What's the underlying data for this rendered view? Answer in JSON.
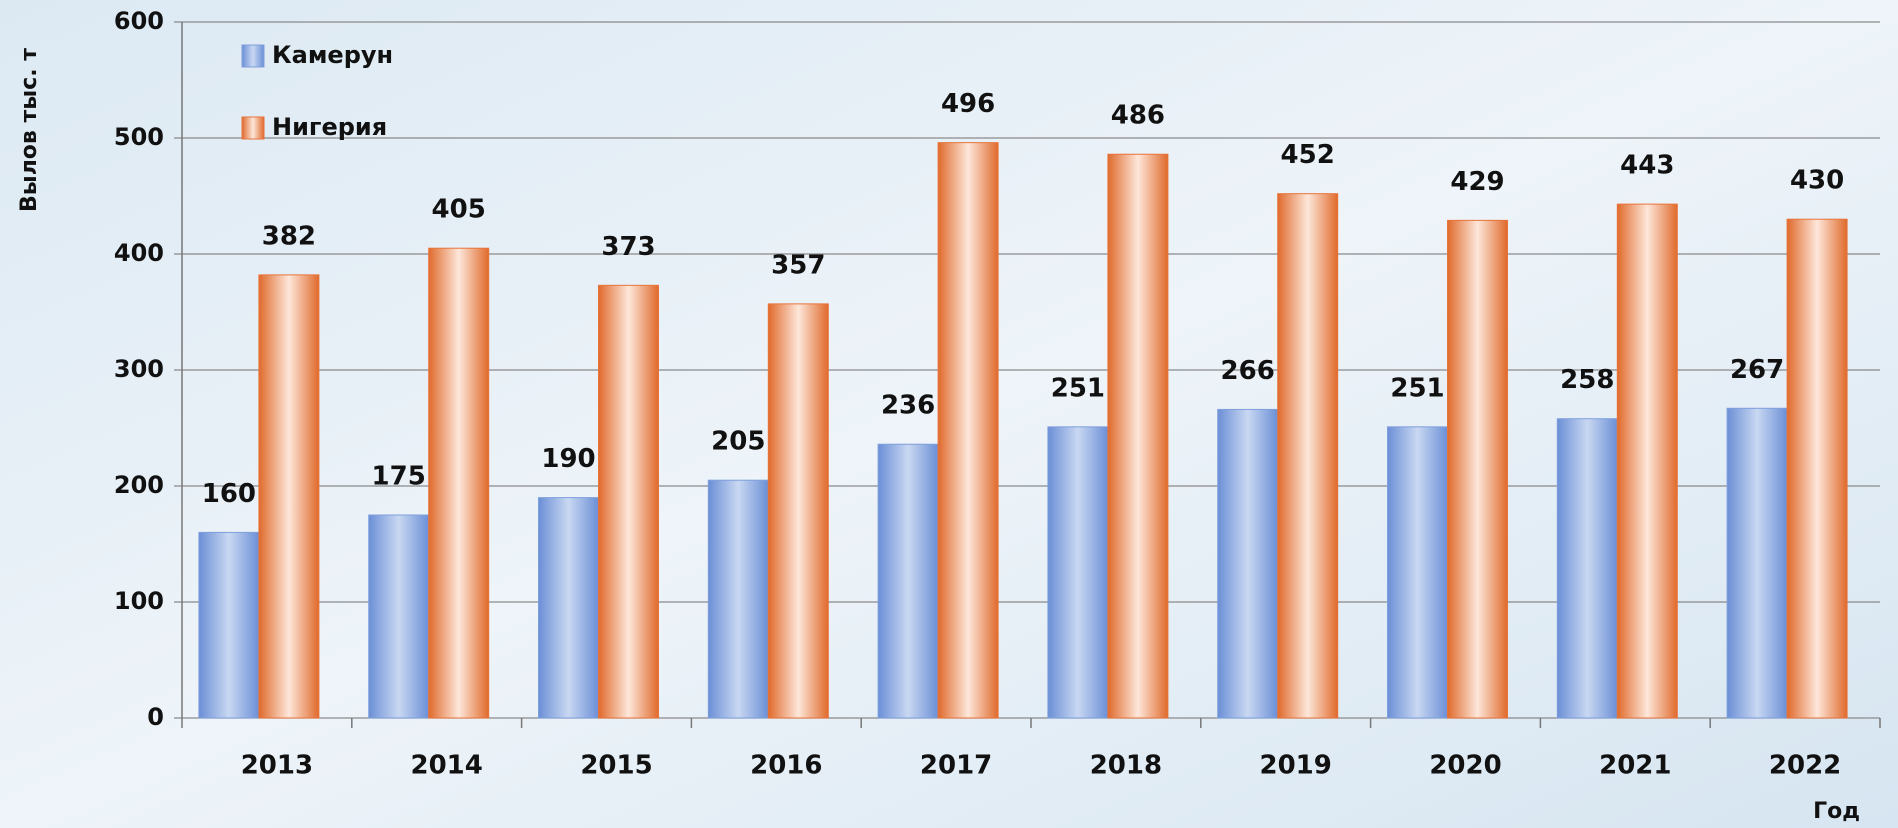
{
  "chart_data": {
    "type": "bar",
    "categories": [
      "2013",
      "2014",
      "2015",
      "2016",
      "2017",
      "2018",
      "2019",
      "2020",
      "2021",
      "2022"
    ],
    "series": [
      {
        "name": "Камерун",
        "color": "#7f9fdc",
        "values": [
          160,
          175,
          190,
          205,
          236,
          251,
          266,
          251,
          258,
          267
        ]
      },
      {
        "name": "Нигерия",
        "color": "#e8743a",
        "values": [
          382,
          405,
          373,
          357,
          496,
          486,
          452,
          429,
          443,
          430
        ]
      }
    ],
    "ylabel": "Вылов тыс. т",
    "xlabel": "Год",
    "ylim": [
      0,
      600
    ],
    "yticks": [
      0,
      100,
      200,
      300,
      400,
      500,
      600
    ],
    "grid": true,
    "legend": "upper left"
  }
}
